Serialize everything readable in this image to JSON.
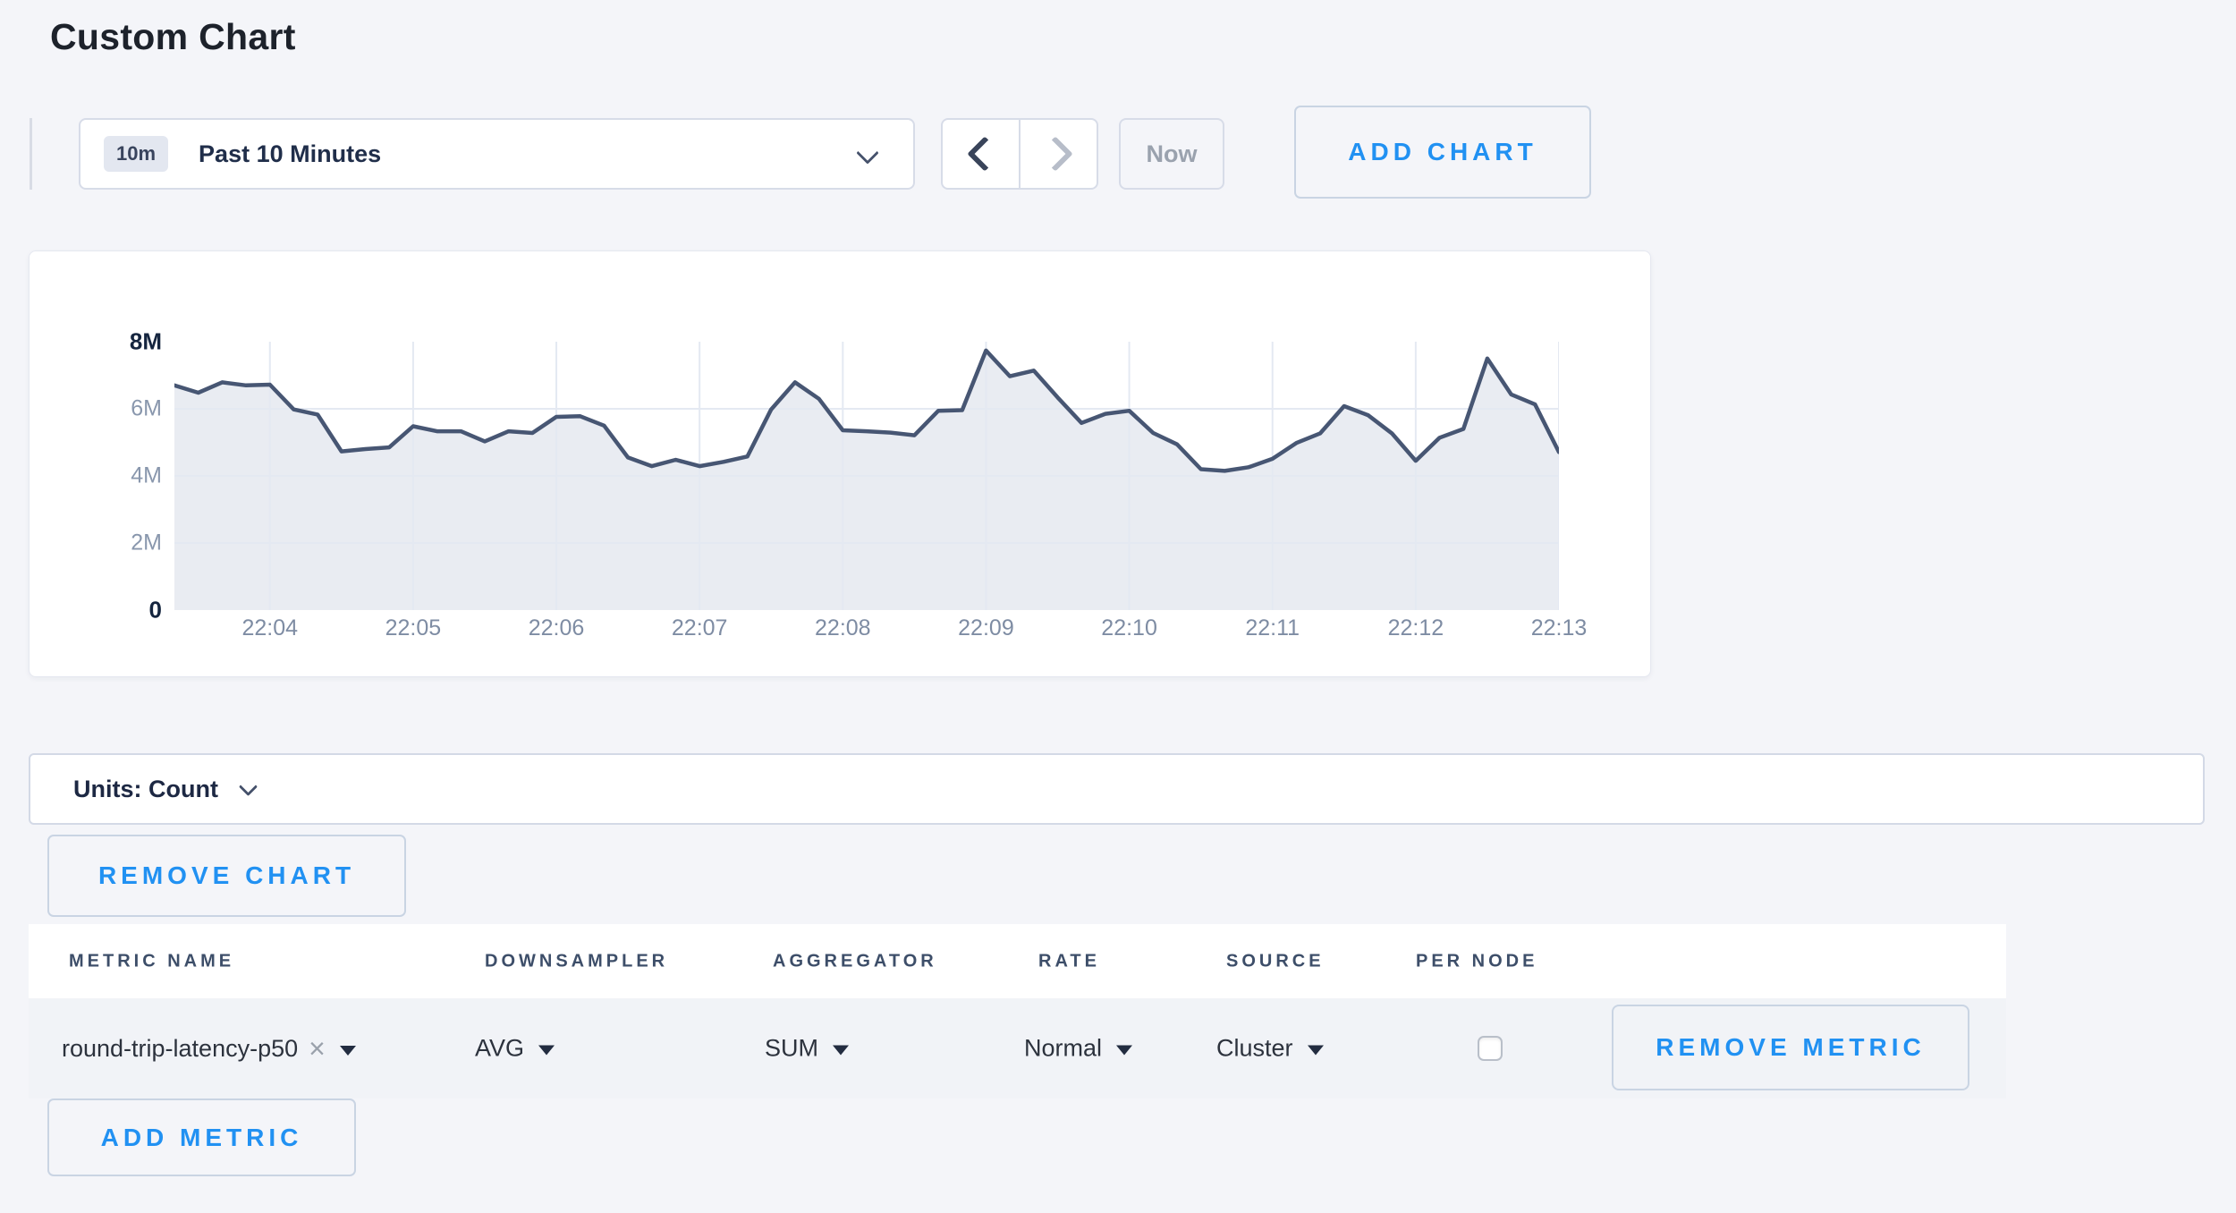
{
  "theme": {
    "accent_blue": "#2191f2",
    "page_bg": "#f4f5f9",
    "card_bg": "#ffffff"
  },
  "page": {
    "title": "Custom Chart"
  },
  "toolbar": {
    "time_range_badge": "10m",
    "time_range_label": "Past 10 Minutes",
    "prev_icon": "chevron-left",
    "next_icon": "chevron-right",
    "dropdown_icon": "chevron-down",
    "now_label": "Now",
    "add_chart_label": "ADD CHART"
  },
  "chart_data": {
    "type": "area",
    "series": [
      {
        "name": "round-trip-latency-p50",
        "values_m": [
          6.7,
          6.48,
          6.79,
          6.7,
          6.72,
          5.98,
          5.83,
          4.73,
          4.8,
          4.85,
          5.48,
          5.33,
          5.33,
          5.03,
          5.33,
          5.28,
          5.76,
          5.78,
          5.5,
          4.55,
          4.29,
          4.48,
          4.29,
          4.42,
          4.58,
          5.98,
          6.79,
          6.3,
          5.36,
          5.33,
          5.29,
          5.21,
          5.94,
          5.96,
          7.74,
          6.97,
          7.14,
          6.34,
          5.58,
          5.85,
          5.94,
          5.28,
          4.94,
          4.2,
          4.15,
          4.26,
          4.51,
          4.98,
          5.27,
          6.08,
          5.81,
          5.27,
          4.45,
          5.14,
          5.4,
          7.5,
          6.43,
          6.13,
          4.71
        ]
      }
    ],
    "point_interval_seconds": 10,
    "x_ticks": [
      "22:04",
      "22:05",
      "22:06",
      "22:07",
      "22:08",
      "22:09",
      "22:10",
      "22:11",
      "22:12",
      "22:13"
    ],
    "y_ticks": [
      "8M",
      "6M",
      "4M",
      "2M",
      "0"
    ],
    "ylim_m": [
      0,
      8
    ],
    "grid": true,
    "legend": "none",
    "line_color": "#475673",
    "fill_color": "#e9ecf2",
    "grid_color": "#e4e9f2"
  },
  "units_bar": {
    "label": "Units: Count",
    "dropdown_icon": "chevron-down"
  },
  "chart_actions": {
    "remove_chart_label": "REMOVE CHART"
  },
  "metrics_table": {
    "headers": [
      "METRIC NAME",
      "DOWNSAMPLER",
      "AGGREGATOR",
      "RATE",
      "SOURCE",
      "PER NODE"
    ],
    "rows": [
      {
        "metric_name": "round-trip-latency-p50",
        "clear_icon": "×",
        "downsampler": "AVG",
        "aggregator": "SUM",
        "rate": "Normal",
        "source": "Cluster",
        "per_node_checked": false,
        "remove_metric_label": "REMOVE METRIC"
      }
    ],
    "add_metric_label": "ADD METRIC"
  }
}
